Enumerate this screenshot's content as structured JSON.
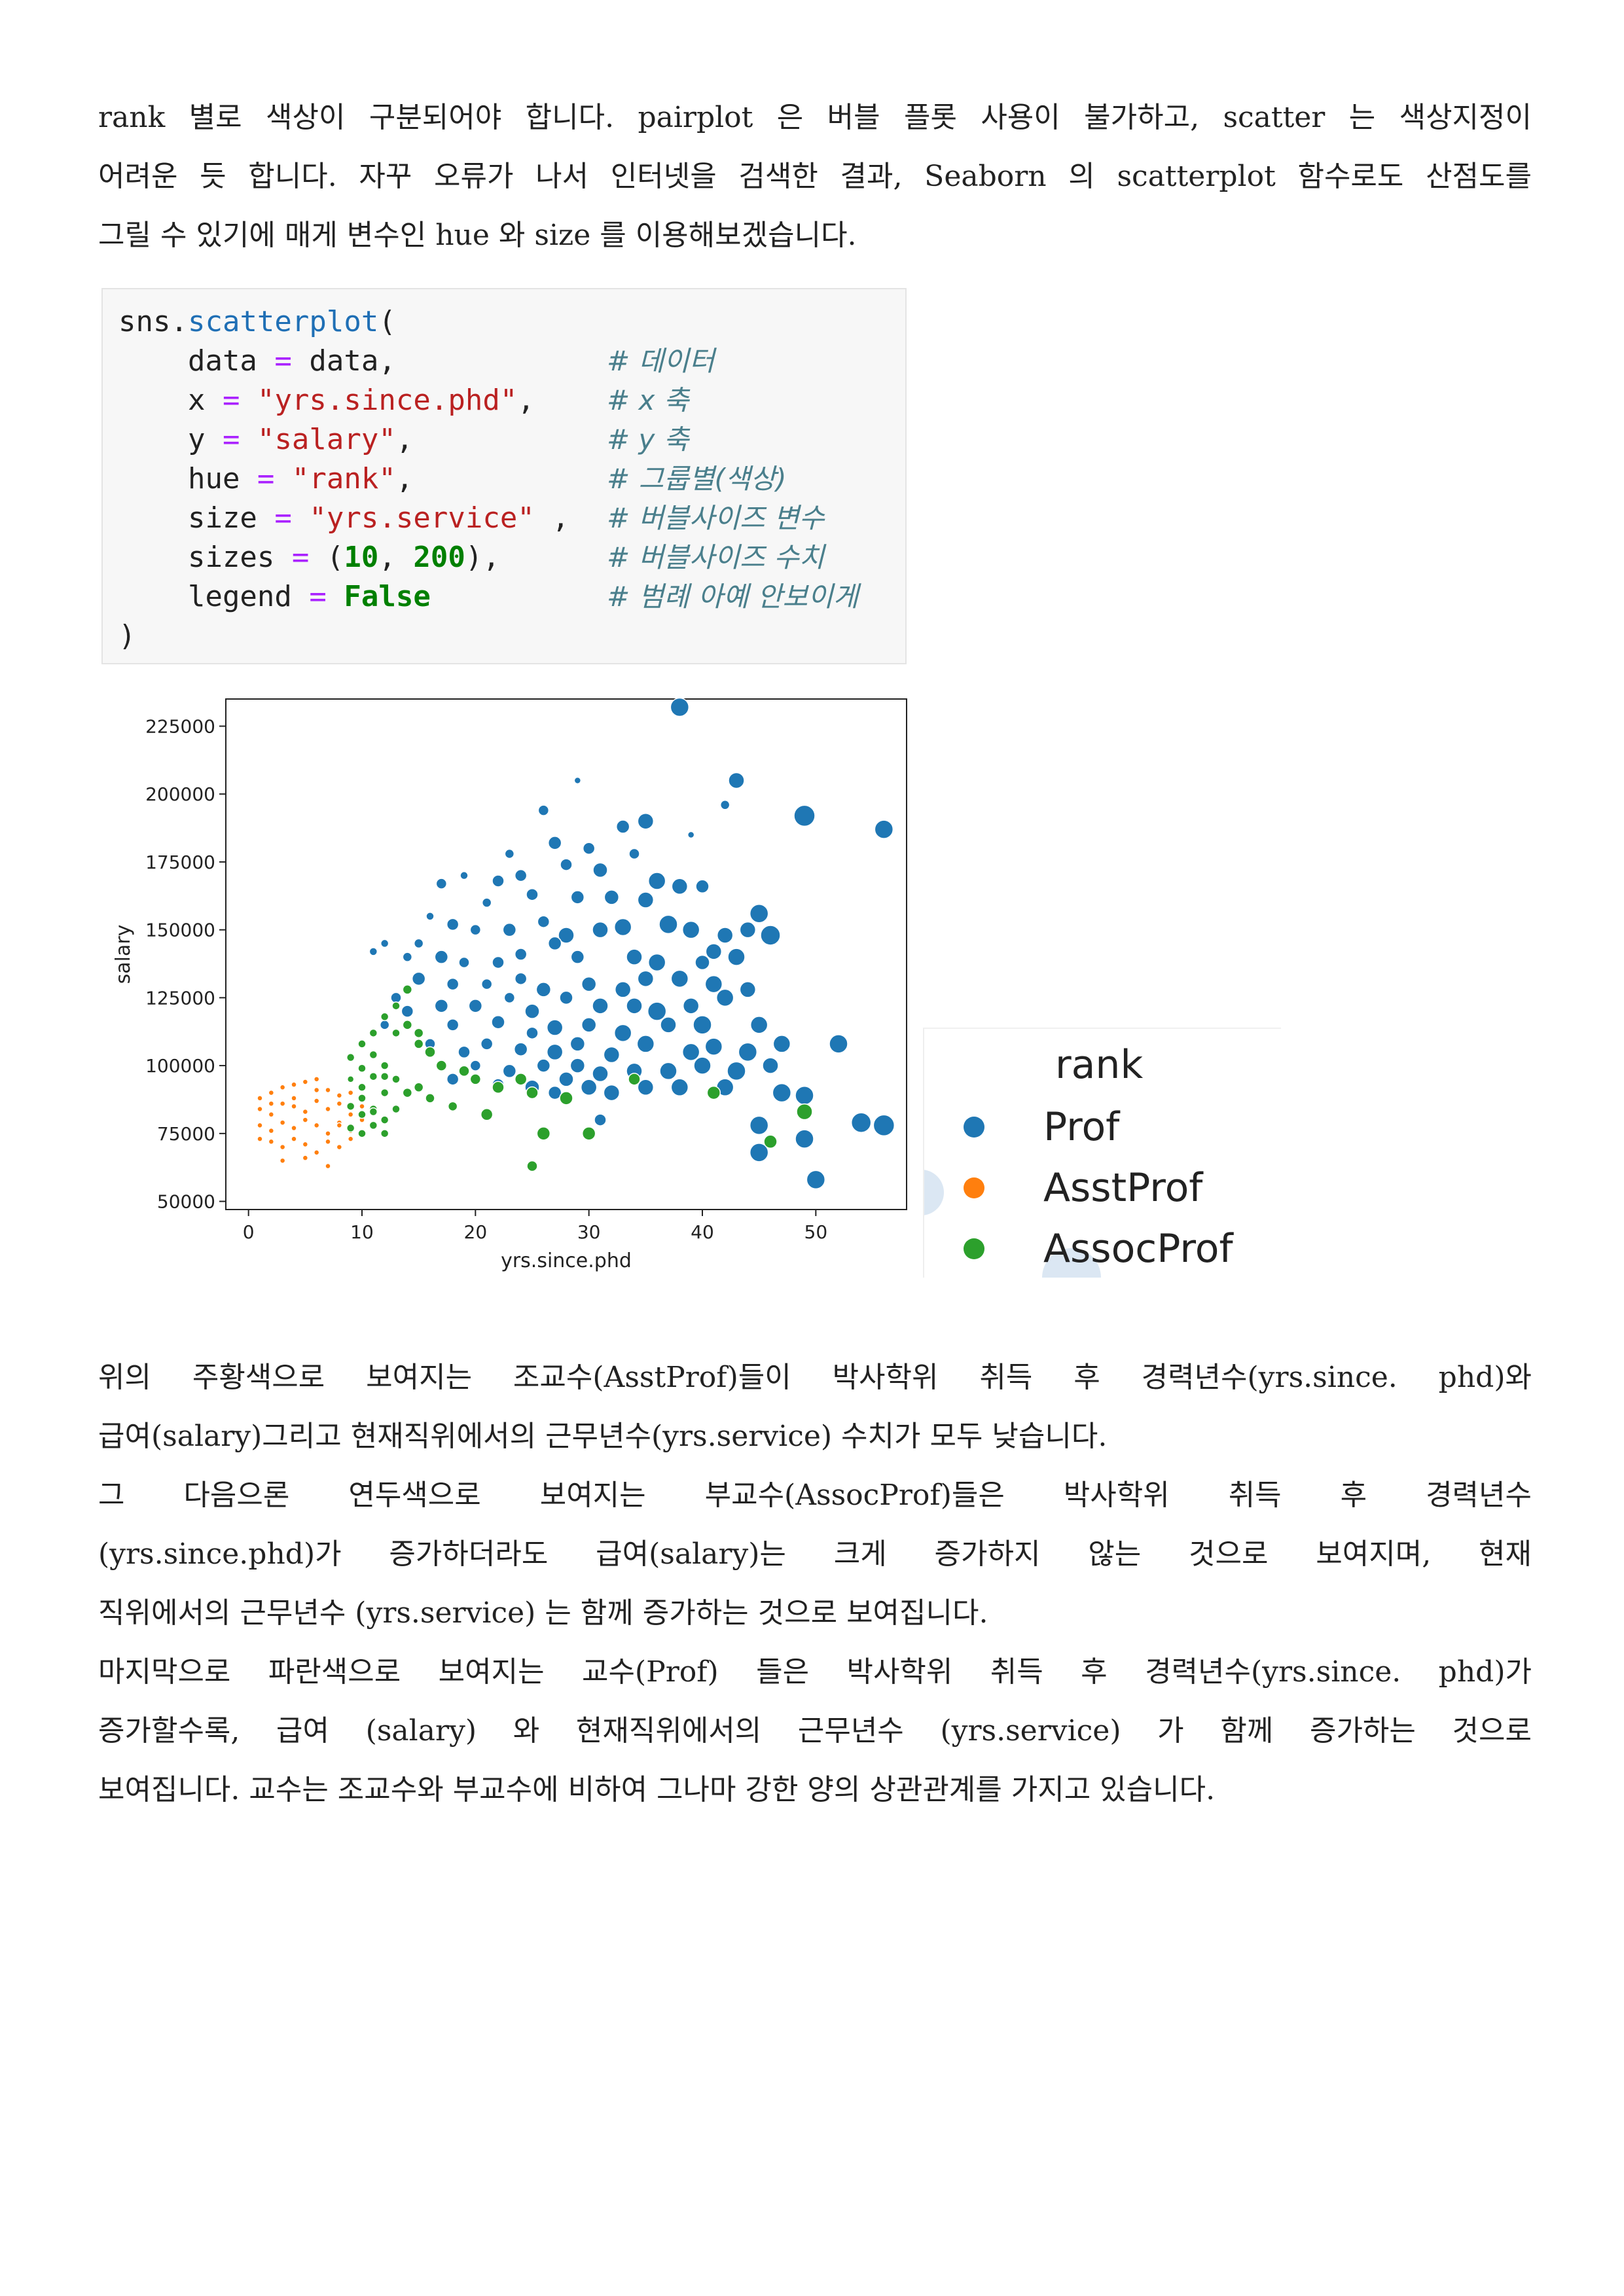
{
  "intro": {
    "lines": [
      "rank 별로 색상이 구분되어야 합니다. pairplot 은 버블 플롯 사용이 불가하고, scatter 는 색상지정이",
      "어려운 듯 합니다. 자꾸 오류가 나서 인터넷을 검색한 결과, Seaborn 의 scatterplot 함수로도 산점도를",
      "그릴 수 있기에 매게 변수인 hue 와 size 를 이용해보겠습니다."
    ]
  },
  "code": {
    "lines": [
      "sns.scatterplot(",
      "    data = data,",
      "    x = \"yrs.since.phd\",",
      "    y = \"salary\",",
      "    hue = \"rank\",",
      "    size = \"yrs.service\" ,",
      "    sizes = (10, 200),",
      "    legend = False",
      ")"
    ],
    "comments": [
      "# 데이터",
      "# x 축",
      "# y 축",
      "# 그룹별(색상)",
      "# 버블사이즈 변수",
      "# 버블사이즈 수치",
      "# 범례 아예 안보이게"
    ]
  },
  "chart_data": {
    "type": "scatter",
    "xlabel": "yrs.since.phd",
    "ylabel": "salary",
    "xlim": [
      -2,
      58
    ],
    "ylim": [
      47000,
      235000
    ],
    "xticks": [
      0,
      10,
      20,
      30,
      40,
      50
    ],
    "yticks": [
      50000,
      75000,
      100000,
      125000,
      150000,
      175000,
      200000,
      225000
    ],
    "ytick_labels": [
      "50000",
      "75000",
      "100000",
      "125000",
      "150000",
      "175000",
      "200000",
      "225000"
    ],
    "series": [
      {
        "name": "Prof",
        "color": "#1f77b4",
        "points": [
          [
            38,
            232000,
            14
          ],
          [
            43,
            205000,
            12
          ],
          [
            49,
            192000,
            16
          ],
          [
            56,
            187000,
            14
          ],
          [
            42,
            196000,
            7
          ],
          [
            39,
            185000,
            5
          ],
          [
            29,
            205000,
            5
          ],
          [
            26,
            194000,
            8
          ],
          [
            33,
            188000,
            10
          ],
          [
            35,
            190000,
            12
          ],
          [
            30,
            180000,
            9
          ],
          [
            27,
            182000,
            10
          ],
          [
            23,
            178000,
            7
          ],
          [
            22,
            168000,
            9
          ],
          [
            19,
            170000,
            6
          ],
          [
            24,
            170000,
            9
          ],
          [
            28,
            174000,
            9
          ],
          [
            31,
            172000,
            11
          ],
          [
            34,
            178000,
            8
          ],
          [
            36,
            168000,
            13
          ],
          [
            38,
            166000,
            12
          ],
          [
            40,
            166000,
            10
          ],
          [
            17,
            167000,
            8
          ],
          [
            21,
            160000,
            7
          ],
          [
            25,
            163000,
            9
          ],
          [
            29,
            162000,
            10
          ],
          [
            32,
            162000,
            11
          ],
          [
            35,
            161000,
            12
          ],
          [
            45,
            156000,
            14
          ],
          [
            44,
            150000,
            12
          ],
          [
            16,
            155000,
            6
          ],
          [
            18,
            152000,
            9
          ],
          [
            20,
            150000,
            8
          ],
          [
            23,
            150000,
            10
          ],
          [
            26,
            153000,
            9
          ],
          [
            28,
            148000,
            12
          ],
          [
            31,
            150000,
            12
          ],
          [
            33,
            151000,
            13
          ],
          [
            37,
            152000,
            14
          ],
          [
            39,
            150000,
            13
          ],
          [
            42,
            148000,
            12
          ],
          [
            46,
            148000,
            15
          ],
          [
            15,
            145000,
            7
          ],
          [
            12,
            145000,
            6
          ],
          [
            11,
            142000,
            6
          ],
          [
            14,
            140000,
            7
          ],
          [
            17,
            140000,
            10
          ],
          [
            19,
            138000,
            8
          ],
          [
            22,
            138000,
            9
          ],
          [
            24,
            141000,
            9
          ],
          [
            27,
            145000,
            10
          ],
          [
            29,
            140000,
            10
          ],
          [
            34,
            140000,
            12
          ],
          [
            36,
            138000,
            13
          ],
          [
            40,
            138000,
            11
          ],
          [
            41,
            142000,
            12
          ],
          [
            43,
            140000,
            13
          ],
          [
            15,
            132000,
            10
          ],
          [
            18,
            130000,
            9
          ],
          [
            21,
            130000,
            8
          ],
          [
            24,
            132000,
            9
          ],
          [
            26,
            128000,
            11
          ],
          [
            30,
            130000,
            11
          ],
          [
            33,
            128000,
            12
          ],
          [
            35,
            132000,
            12
          ],
          [
            38,
            132000,
            13
          ],
          [
            41,
            130000,
            13
          ],
          [
            44,
            128000,
            12
          ],
          [
            13,
            125000,
            8
          ],
          [
            14,
            120000,
            9
          ],
          [
            17,
            122000,
            10
          ],
          [
            20,
            122000,
            10
          ],
          [
            23,
            125000,
            8
          ],
          [
            25,
            120000,
            11
          ],
          [
            28,
            125000,
            10
          ],
          [
            31,
            122000,
            12
          ],
          [
            34,
            122000,
            12
          ],
          [
            36,
            120000,
            14
          ],
          [
            39,
            122000,
            12
          ],
          [
            42,
            125000,
            13
          ],
          [
            12,
            115000,
            7
          ],
          [
            15,
            112000,
            8
          ],
          [
            18,
            115000,
            9
          ],
          [
            22,
            116000,
            10
          ],
          [
            25,
            112000,
            9
          ],
          [
            27,
            114000,
            12
          ],
          [
            30,
            115000,
            11
          ],
          [
            33,
            112000,
            13
          ],
          [
            37,
            115000,
            12
          ],
          [
            40,
            115000,
            14
          ],
          [
            45,
            115000,
            13
          ],
          [
            52,
            108000,
            14
          ],
          [
            16,
            108000,
            8
          ],
          [
            19,
            105000,
            9
          ],
          [
            21,
            108000,
            9
          ],
          [
            24,
            106000,
            10
          ],
          [
            27,
            105000,
            12
          ],
          [
            29,
            108000,
            11
          ],
          [
            32,
            104000,
            12
          ],
          [
            35,
            108000,
            13
          ],
          [
            39,
            105000,
            13
          ],
          [
            41,
            107000,
            13
          ],
          [
            44,
            105000,
            14
          ],
          [
            47,
            108000,
            13
          ],
          [
            20,
            100000,
            8
          ],
          [
            23,
            98000,
            10
          ],
          [
            26,
            100000,
            10
          ],
          [
            29,
            100000,
            11
          ],
          [
            31,
            97000,
            12
          ],
          [
            34,
            98000,
            12
          ],
          [
            37,
            98000,
            13
          ],
          [
            40,
            100000,
            13
          ],
          [
            43,
            98000,
            14
          ],
          [
            46,
            100000,
            12
          ],
          [
            18,
            95000,
            9
          ],
          [
            22,
            93000,
            9
          ],
          [
            25,
            92000,
            11
          ],
          [
            28,
            95000,
            11
          ],
          [
            30,
            92000,
            12
          ],
          [
            32,
            90000,
            12
          ],
          [
            35,
            92000,
            12
          ],
          [
            38,
            92000,
            13
          ],
          [
            42,
            92000,
            13
          ],
          [
            47,
            90000,
            14
          ],
          [
            49,
            89000,
            14
          ],
          [
            27,
            90000,
            10
          ],
          [
            31,
            80000,
            9
          ],
          [
            45,
            78000,
            14
          ],
          [
            45,
            68000,
            14
          ],
          [
            49,
            73000,
            14
          ],
          [
            50,
            58000,
            14
          ],
          [
            54,
            79000,
            15
          ],
          [
            56,
            78000,
            16
          ]
        ]
      },
      {
        "name": "AsstProf",
        "color": "#ff7f0e",
        "points": [
          [
            1,
            88000,
            4
          ],
          [
            2,
            90000,
            4
          ],
          [
            3,
            92000,
            4
          ],
          [
            4,
            93000,
            4
          ],
          [
            5,
            94000,
            4
          ],
          [
            6,
            95000,
            4
          ],
          [
            7,
            91000,
            4
          ],
          [
            8,
            89000,
            4
          ],
          [
            9,
            90000,
            4
          ],
          [
            1,
            84000,
            4
          ],
          [
            2,
            82000,
            4
          ],
          [
            3,
            86000,
            4
          ],
          [
            4,
            85000,
            4
          ],
          [
            5,
            83000,
            4
          ],
          [
            6,
            87000,
            4
          ],
          [
            7,
            84000,
            4
          ],
          [
            8,
            86000,
            4
          ],
          [
            9,
            82000,
            4
          ],
          [
            10,
            85000,
            4
          ],
          [
            1,
            78000,
            4
          ],
          [
            2,
            76000,
            4
          ],
          [
            3,
            79000,
            4
          ],
          [
            4,
            77000,
            4
          ],
          [
            5,
            80000,
            4
          ],
          [
            6,
            78000,
            4
          ],
          [
            7,
            75000,
            4
          ],
          [
            8,
            79000,
            4
          ],
          [
            9,
            76000,
            4
          ],
          [
            10,
            80000,
            4
          ],
          [
            2,
            72000,
            4
          ],
          [
            3,
            70000,
            4
          ],
          [
            4,
            73000,
            4
          ],
          [
            5,
            71000,
            4
          ],
          [
            6,
            68000,
            4
          ],
          [
            7,
            72000,
            4
          ],
          [
            8,
            70000,
            4
          ],
          [
            9,
            73000,
            4
          ],
          [
            3,
            65000,
            4
          ],
          [
            5,
            66000,
            4
          ],
          [
            7,
            63000,
            4
          ],
          [
            4,
            88000,
            4
          ],
          [
            6,
            91000,
            4
          ],
          [
            2,
            86000,
            4
          ],
          [
            8,
            78000,
            4
          ],
          [
            1,
            73000,
            4
          ]
        ]
      },
      {
        "name": "AssocProf",
        "color": "#2ca02c",
        "points": [
          [
            9,
            103000,
            6
          ],
          [
            10,
            99000,
            6
          ],
          [
            11,
            104000,
            6
          ],
          [
            12,
            100000,
            6
          ],
          [
            9,
            95000,
            5
          ],
          [
            10,
            92000,
            6
          ],
          [
            11,
            96000,
            6
          ],
          [
            12,
            90000,
            6
          ],
          [
            13,
            95000,
            6
          ],
          [
            9,
            85000,
            6
          ],
          [
            10,
            82000,
            6
          ],
          [
            11,
            84000,
            6
          ],
          [
            12,
            80000,
            6
          ],
          [
            13,
            84000,
            6
          ],
          [
            9,
            77000,
            6
          ],
          [
            10,
            75000,
            6
          ],
          [
            11,
            78000,
            6
          ],
          [
            12,
            75000,
            6
          ],
          [
            14,
            90000,
            7
          ],
          [
            15,
            92000,
            7
          ],
          [
            16,
            88000,
            7
          ],
          [
            18,
            85000,
            7
          ],
          [
            10,
            108000,
            6
          ],
          [
            11,
            112000,
            6
          ],
          [
            13,
            112000,
            6
          ],
          [
            12,
            118000,
            6
          ],
          [
            14,
            115000,
            7
          ],
          [
            15,
            108000,
            7
          ],
          [
            16,
            105000,
            8
          ],
          [
            17,
            100000,
            8
          ],
          [
            19,
            98000,
            8
          ],
          [
            20,
            95000,
            8
          ],
          [
            22,
            92000,
            9
          ],
          [
            24,
            95000,
            9
          ],
          [
            25,
            90000,
            9
          ],
          [
            28,
            88000,
            10
          ],
          [
            13,
            122000,
            6
          ],
          [
            14,
            128000,
            7
          ],
          [
            15,
            112000,
            7
          ],
          [
            21,
            82000,
            9
          ],
          [
            26,
            75000,
            10
          ],
          [
            30,
            75000,
            10
          ],
          [
            25,
            63000,
            8
          ],
          [
            34,
            95000,
            9
          ],
          [
            41,
            90000,
            10
          ],
          [
            46,
            72000,
            10
          ],
          [
            49,
            83000,
            12
          ],
          [
            10,
            88000,
            6
          ],
          [
            12,
            96000,
            6
          ],
          [
            11,
            83000,
            6
          ]
        ]
      }
    ]
  },
  "legend": {
    "title": "rank",
    "items": [
      {
        "label": "Prof",
        "color": "#1f77b4"
      },
      {
        "label": "AsstProf",
        "color": "#ff7f0e"
      },
      {
        "label": "AssocProf",
        "color": "#2ca02c"
      }
    ]
  },
  "analysis": {
    "lines": [
      " 위의 주황색으로 보여지는 조교수(AsstProf)들이 박사학위 취득 후 경력년수(yrs.since. phd)와",
      "급여(salary)그리고 현재직위에서의 근무년수(yrs.service) 수치가 모두 낮습니다.",
      "그 다음으론 연두색으로 보여지는 부교수(AssocProf)들은 박사학위 취득 후 경력년수",
      "(yrs.since.phd)가 증가하더라도 급여(salary)는 크게 증가하지 않는 것으로 보여지며, 현재",
      "직위에서의 근무년수 (yrs.service) 는 함께 증가하는 것으로 보여집니다.",
      " 마지막으로 파란색으로 보여지는 교수(Prof) 들은 박사학위 취득 후 경력년수(yrs.since. phd)가",
      "증가할수록, 급여 (salary) 와 현재직위에서의 근무년수 (yrs.service) 가 함께 증가하는 것으로",
      "보여집니다. 교수는 조교수와 부교수에 비하여 그나마 강한 양의 상관관계를 가지고 있습니다."
    ]
  }
}
